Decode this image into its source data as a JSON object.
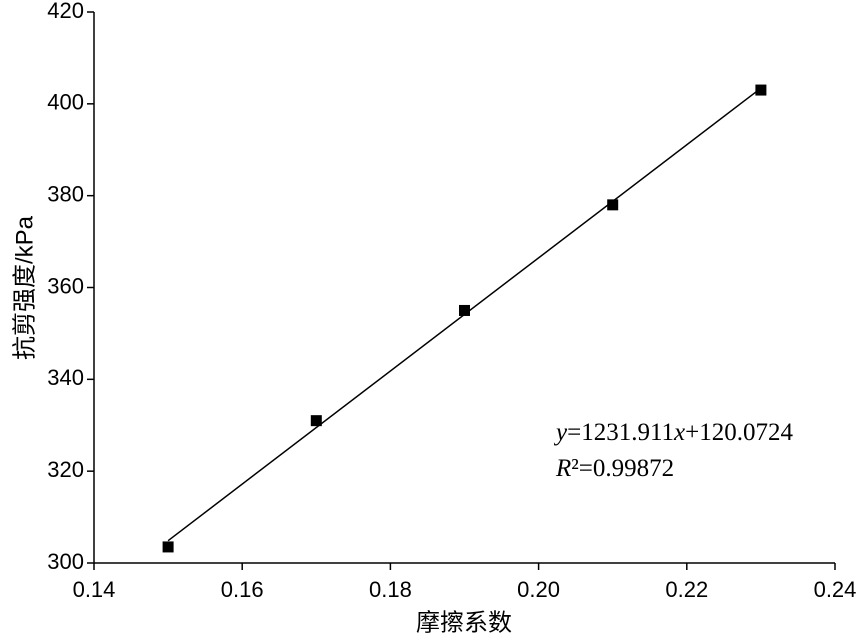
{
  "chart_data": {
    "type": "scatter",
    "x_label": "摩擦系数",
    "y_label": "抗剪强度/kPa",
    "series": [
      {
        "x": [
          0.15,
          0.17,
          0.19,
          0.21,
          0.23
        ],
        "values": [
          303.5,
          331,
          355,
          378,
          403
        ],
        "color": "#000000",
        "marker": "square"
      },
      {
        "x": [
          0.15,
          0.23
        ],
        "values": [
          304.86,
          403.41
        ],
        "color": "#000000",
        "marker": "none"
      }
    ],
    "xlim": [
      0.14,
      0.24
    ],
    "xticks": [
      0.14,
      0.16,
      0.18,
      {
        "value": 0.2,
        "label": "0.20"
      },
      0.22,
      0.24
    ],
    "ylim": [
      300,
      420
    ],
    "yticks": [
      300,
      320,
      340,
      360,
      380,
      400,
      420
    ],
    "annotations": [
      [
        {
          "text": "y",
          "italic": true
        },
        {
          "text": "=1231.911"
        },
        {
          "text": "x",
          "italic": true
        },
        {
          "text": "+120.0724"
        }
      ],
      [
        {
          "text": "R",
          "italic": true
        },
        {
          "text": "²=0.99872"
        }
      ]
    ]
  }
}
